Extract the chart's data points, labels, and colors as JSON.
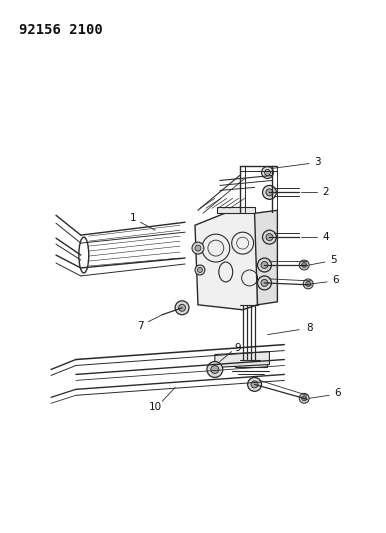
{
  "title": "92156 2100",
  "bg_color": "#ffffff",
  "line_color": "#2a2a2a",
  "label_color": "#111111",
  "title_fontsize": 10,
  "label_fontsize": 7.5
}
